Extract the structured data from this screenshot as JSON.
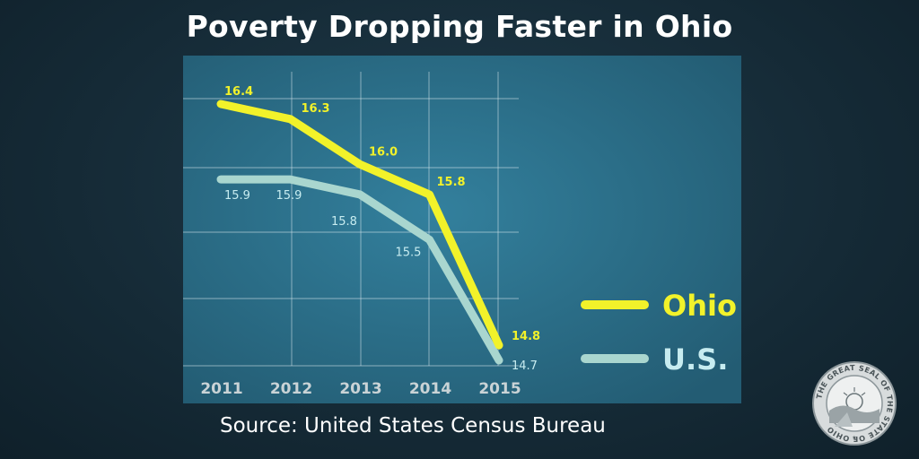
{
  "title": "Poverty Dropping Faster in Ohio",
  "source": "Source: United States Census Bureau",
  "seal_text": "THE GREAT SEAL OF THE STATE OF OHIO",
  "colors": {
    "ohio": "#f2f22a",
    "us": "#a9d6cf",
    "panel": "#2b6b85",
    "ohio_label": "#f2f22a",
    "us_label": "#c7ecf0",
    "tick": "#c9d3d6"
  },
  "chart_data": {
    "type": "line",
    "title": "Poverty Dropping Faster in Ohio",
    "xlabel": "",
    "ylabel": "",
    "categories": [
      "2011",
      "2012",
      "2013",
      "2014",
      "2015"
    ],
    "series": [
      {
        "name": "Ohio",
        "values": [
          16.4,
          16.3,
          16.0,
          15.8,
          14.8
        ],
        "labels": [
          "16.4",
          "16.3",
          "16.0",
          "15.8",
          "14.8"
        ]
      },
      {
        "name": "U.S.",
        "values": [
          15.9,
          15.9,
          15.8,
          15.5,
          14.7
        ],
        "labels": [
          "15.9",
          "15.9",
          "15.8",
          "15.5",
          "14.7"
        ]
      }
    ],
    "ylim": [
      14.7,
      16.4
    ],
    "grid": true,
    "legend": "right"
  }
}
